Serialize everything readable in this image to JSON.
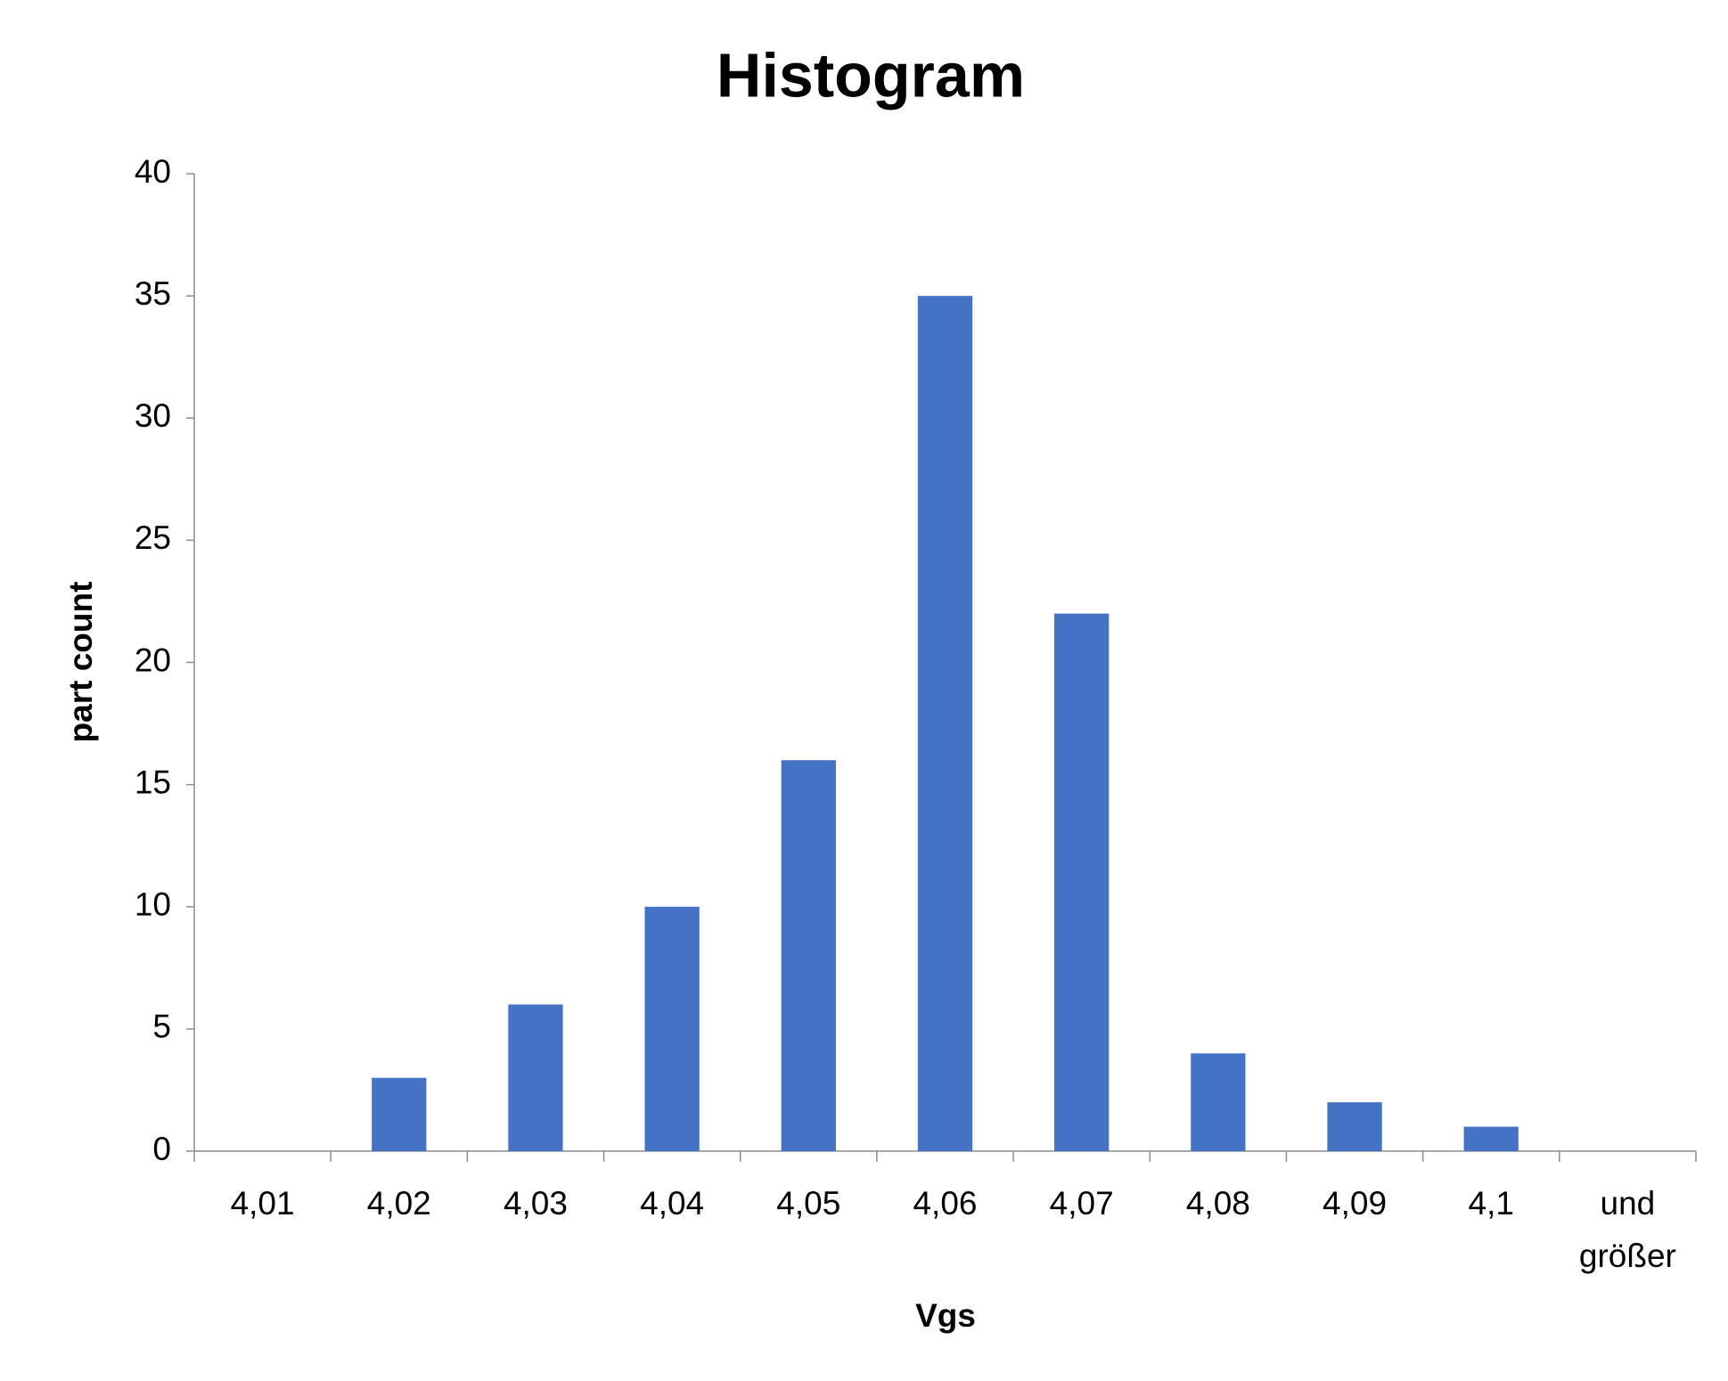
{
  "chart_data": {
    "type": "bar",
    "title": "Histogram",
    "x_label": "Vgs",
    "y_label": "part count",
    "categories": [
      "4,01",
      "4,02",
      "4,03",
      "4,04",
      "4,05",
      "4,06",
      "4,07",
      "4,08",
      "4,09",
      "4,1",
      "und größer"
    ],
    "values": [
      0,
      3,
      6,
      10,
      16,
      35,
      22,
      4,
      2,
      1,
      0
    ],
    "color": "#4472c4",
    "ylim": [
      0,
      40
    ],
    "yticks": [
      0,
      5,
      10,
      15,
      20,
      25,
      30,
      35,
      40
    ],
    "grid": false
  }
}
